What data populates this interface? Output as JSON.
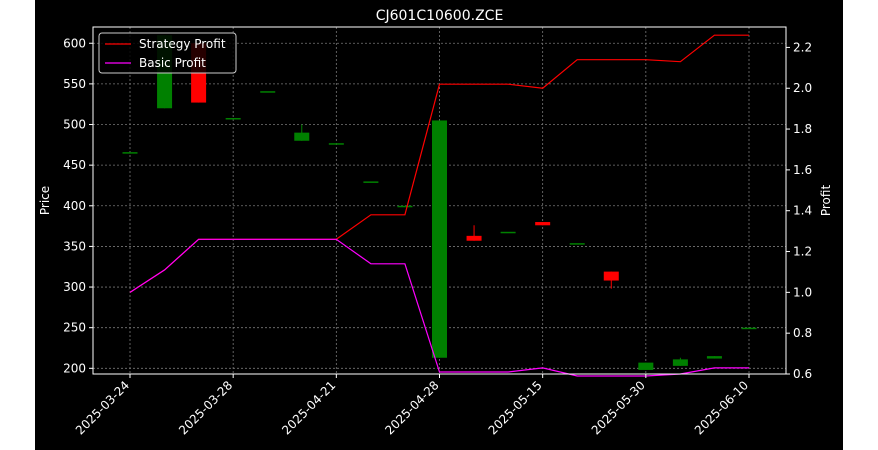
{
  "chart_data": {
    "type": "candlestick+line",
    "title": "CJ601C10600.ZCE",
    "ylabel_left": "Price",
    "ylabel_right": "Profit",
    "xlabel": "",
    "x_tick_labels": [
      "2025-03-24",
      "2025-03-28",
      "2025-04-21",
      "2025-04-28",
      "2025-05-15",
      "2025-05-30",
      "2025-06-10"
    ],
    "x_tick_indices": [
      0,
      2,
      4,
      6,
      8,
      10,
      12
    ],
    "ylim_left": [
      193,
      620
    ],
    "ylim_right": [
      0.6,
      2.3
    ],
    "y_ticks_left": [
      200,
      250,
      300,
      350,
      400,
      450,
      500,
      550,
      600
    ],
    "y_ticks_right": [
      0.6,
      0.8,
      1.0,
      1.2,
      1.4,
      1.6,
      1.8,
      2.0,
      2.2
    ],
    "grid": true,
    "legend_position": "upper-left",
    "colors": {
      "up": "#008000",
      "down": "#ff0000",
      "strategy": "#ff0000",
      "basic": "#ff00ff",
      "grid": "#777777",
      "axis": "#ffffff"
    },
    "candles": [
      {
        "i": 0,
        "open": 466,
        "close": 466,
        "high": 466,
        "low": 466
      },
      {
        "i": 0.67,
        "open": 520,
        "close": 610,
        "high": 610,
        "low": 520
      },
      {
        "i": 1.33,
        "open": 600,
        "close": 527,
        "high": 600,
        "low": 527
      },
      {
        "i": 2,
        "open": 508,
        "close": 508,
        "high": 508,
        "low": 508
      },
      {
        "i": 2.67,
        "open": 541,
        "close": 541,
        "high": 541,
        "low": 541
      },
      {
        "i": 3.33,
        "open": 480,
        "close": 490,
        "high": 500,
        "low": 480
      },
      {
        "i": 4,
        "open": 477,
        "close": 477,
        "high": 477,
        "low": 477
      },
      {
        "i": 4.67,
        "open": 430,
        "close": 430,
        "high": 430,
        "low": 430
      },
      {
        "i": 5.33,
        "open": 400,
        "close": 400,
        "high": 400,
        "low": 400
      },
      {
        "i": 6,
        "open": 213,
        "close": 505,
        "high": 505,
        "low": 213
      },
      {
        "i": 6.67,
        "open": 363,
        "close": 357,
        "high": 376,
        "low": 357
      },
      {
        "i": 7.33,
        "open": 368,
        "close": 368,
        "high": 368,
        "low": 368
      },
      {
        "i": 8,
        "open": 380,
        "close": 376,
        "high": 380,
        "low": 376
      },
      {
        "i": 8.67,
        "open": 354,
        "close": 354,
        "high": 354,
        "low": 354
      },
      {
        "i": 9.33,
        "open": 319,
        "close": 308,
        "high": 319,
        "low": 298
      },
      {
        "i": 10,
        "open": 198,
        "close": 207,
        "high": 207,
        "low": 198
      },
      {
        "i": 10.67,
        "open": 203,
        "close": 211,
        "high": 213,
        "low": 203
      },
      {
        "i": 11.33,
        "open": 212,
        "close": 215,
        "high": 215,
        "low": 212
      },
      {
        "i": 12,
        "open": 250,
        "close": 250,
        "high": 250,
        "low": 250
      }
    ],
    "series": [
      {
        "name": "Strategy Profit",
        "color": "#ff0000",
        "points": [
          [
            0,
            1.0
          ],
          [
            0.67,
            1.11
          ],
          [
            1.33,
            1.26
          ],
          [
            2,
            1.26
          ],
          [
            2.67,
            1.26
          ],
          [
            3.33,
            1.26
          ],
          [
            4,
            1.26
          ],
          [
            4.67,
            1.38
          ],
          [
            5.33,
            1.38
          ],
          [
            6,
            2.02
          ],
          [
            6.67,
            2.02
          ],
          [
            7.33,
            2.02
          ],
          [
            8,
            2.0
          ],
          [
            8.67,
            2.14
          ],
          [
            9.33,
            2.14
          ],
          [
            10,
            2.14
          ],
          [
            10.67,
            2.13
          ],
          [
            11.33,
            2.26
          ],
          [
            12,
            2.26
          ]
        ]
      },
      {
        "name": "Basic Profit",
        "color": "#ff00ff",
        "points": [
          [
            0,
            1.0
          ],
          [
            0.67,
            1.11
          ],
          [
            1.33,
            1.26
          ],
          [
            2,
            1.26
          ],
          [
            2.67,
            1.26
          ],
          [
            3.33,
            1.26
          ],
          [
            4,
            1.26
          ],
          [
            4.67,
            1.14
          ],
          [
            5.33,
            1.14
          ],
          [
            6,
            0.61
          ],
          [
            6.67,
            0.61
          ],
          [
            7.33,
            0.61
          ],
          [
            8,
            0.63
          ],
          [
            8.67,
            0.59
          ],
          [
            9.33,
            0.59
          ],
          [
            10,
            0.59
          ],
          [
            10.67,
            0.6
          ],
          [
            11.33,
            0.63
          ],
          [
            12,
            0.63
          ]
        ]
      }
    ]
  }
}
